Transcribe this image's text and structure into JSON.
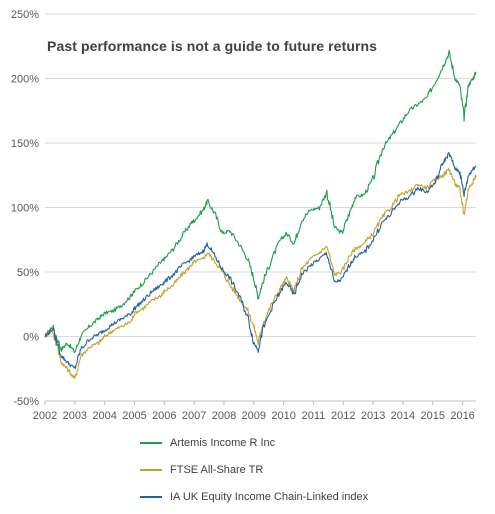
{
  "chart_data": {
    "type": "line",
    "title": "Past performance is not a guide to future returns",
    "xlabel": "",
    "ylabel": "",
    "x_ticks": [
      "2002",
      "2003",
      "2004",
      "2005",
      "2006",
      "2007",
      "2008",
      "2009",
      "2010",
      "2011",
      "2012",
      "2013",
      "2014",
      "2015",
      "2016"
    ],
    "y_ticks": [
      "-50%",
      "0%",
      "50%",
      "100%",
      "150%",
      "200%",
      "250%"
    ],
    "xlim": [
      2002.0,
      2016.45
    ],
    "ylim": [
      -50,
      250
    ],
    "grid": "horizontal",
    "legend_position": "bottom",
    "series": [
      {
        "name": "Artemis Income R Inc",
        "color": "#1aa04a",
        "x": [
          2002.0,
          2002.25,
          2002.55,
          2002.75,
          2003.0,
          2003.2,
          2003.5,
          2003.8,
          2004.0,
          2004.3,
          2004.6,
          2004.9,
          2005.0,
          2005.3,
          2005.6,
          2005.9,
          2006.0,
          2006.3,
          2006.6,
          2006.9,
          2007.0,
          2007.3,
          2007.45,
          2007.7,
          2007.95,
          2008.2,
          2008.5,
          2008.8,
          2009.0,
          2009.15,
          2009.3,
          2009.6,
          2009.9,
          2010.1,
          2010.35,
          2010.6,
          2010.9,
          2011.2,
          2011.45,
          2011.7,
          2011.95,
          2012.2,
          2012.4,
          2012.7,
          2013.0,
          2013.3,
          2013.6,
          2013.9,
          2014.2,
          2014.5,
          2014.8,
          2015.1,
          2015.35,
          2015.55,
          2015.75,
          2015.9,
          2016.05,
          2016.2,
          2016.35,
          2016.45
        ],
        "values": [
          0,
          8,
          -10,
          -5,
          -12,
          0,
          8,
          14,
          18,
          20,
          25,
          32,
          35,
          42,
          50,
          58,
          60,
          68,
          78,
          88,
          90,
          98,
          105,
          95,
          80,
          82,
          72,
          60,
          45,
          30,
          42,
          60,
          75,
          80,
          72,
          90,
          98,
          100,
          112,
          85,
          80,
          95,
          108,
          110,
          122,
          145,
          155,
          165,
          175,
          180,
          185,
          198,
          210,
          220,
          200,
          195,
          170,
          195,
          200,
          205
        ]
      },
      {
        "name": "FTSE All-Share TR",
        "color": "#c8a02a",
        "x": [
          2002.0,
          2002.25,
          2002.55,
          2002.75,
          2003.0,
          2003.2,
          2003.5,
          2003.8,
          2004.0,
          2004.3,
          2004.6,
          2004.9,
          2005.0,
          2005.3,
          2005.6,
          2005.9,
          2006.0,
          2006.3,
          2006.6,
          2006.9,
          2007.0,
          2007.3,
          2007.45,
          2007.7,
          2007.95,
          2008.2,
          2008.5,
          2008.8,
          2009.0,
          2009.15,
          2009.3,
          2009.6,
          2009.9,
          2010.1,
          2010.35,
          2010.6,
          2010.9,
          2011.2,
          2011.45,
          2011.7,
          2011.95,
          2012.2,
          2012.4,
          2012.7,
          2013.0,
          2013.3,
          2013.6,
          2013.9,
          2014.2,
          2014.5,
          2014.8,
          2015.1,
          2015.35,
          2015.55,
          2015.75,
          2015.9,
          2016.05,
          2016.2,
          2016.35,
          2016.45
        ],
        "values": [
          0,
          5,
          -20,
          -25,
          -33,
          -15,
          -8,
          -5,
          0,
          5,
          8,
          12,
          18,
          22,
          28,
          32,
          35,
          40,
          48,
          55,
          58,
          60,
          65,
          58,
          50,
          40,
          30,
          20,
          8,
          -5,
          10,
          25,
          38,
          45,
          35,
          52,
          60,
          65,
          70,
          48,
          50,
          62,
          68,
          72,
          80,
          92,
          100,
          110,
          112,
          118,
          115,
          122,
          125,
          130,
          118,
          115,
          95,
          115,
          120,
          125
        ]
      },
      {
        "name": "IA UK Equity Income Chain-Linked index",
        "color": "#1f63a6",
        "x": [
          2002.0,
          2002.25,
          2002.55,
          2002.75,
          2003.0,
          2003.2,
          2003.5,
          2003.8,
          2004.0,
          2004.3,
          2004.6,
          2004.9,
          2005.0,
          2005.3,
          2005.6,
          2005.9,
          2006.0,
          2006.3,
          2006.6,
          2006.9,
          2007.0,
          2007.3,
          2007.45,
          2007.7,
          2007.95,
          2008.2,
          2008.5,
          2008.8,
          2009.0,
          2009.15,
          2009.3,
          2009.6,
          2009.9,
          2010.1,
          2010.35,
          2010.6,
          2010.9,
          2011.2,
          2011.45,
          2011.7,
          2011.95,
          2012.2,
          2012.4,
          2012.7,
          2013.0,
          2013.3,
          2013.6,
          2013.9,
          2014.2,
          2014.5,
          2014.8,
          2015.1,
          2015.35,
          2015.55,
          2015.75,
          2015.9,
          2016.05,
          2016.2,
          2016.35,
          2016.45
        ],
        "values": [
          0,
          6,
          -15,
          -20,
          -25,
          -10,
          -2,
          2,
          5,
          10,
          14,
          18,
          22,
          28,
          35,
          40,
          42,
          48,
          55,
          60,
          62,
          66,
          72,
          62,
          52,
          45,
          32,
          15,
          -5,
          -10,
          5,
          22,
          35,
          42,
          32,
          48,
          55,
          60,
          65,
          42,
          44,
          55,
          62,
          65,
          75,
          88,
          95,
          105,
          108,
          115,
          112,
          120,
          135,
          142,
          130,
          128,
          110,
          125,
          130,
          132
        ]
      }
    ]
  }
}
